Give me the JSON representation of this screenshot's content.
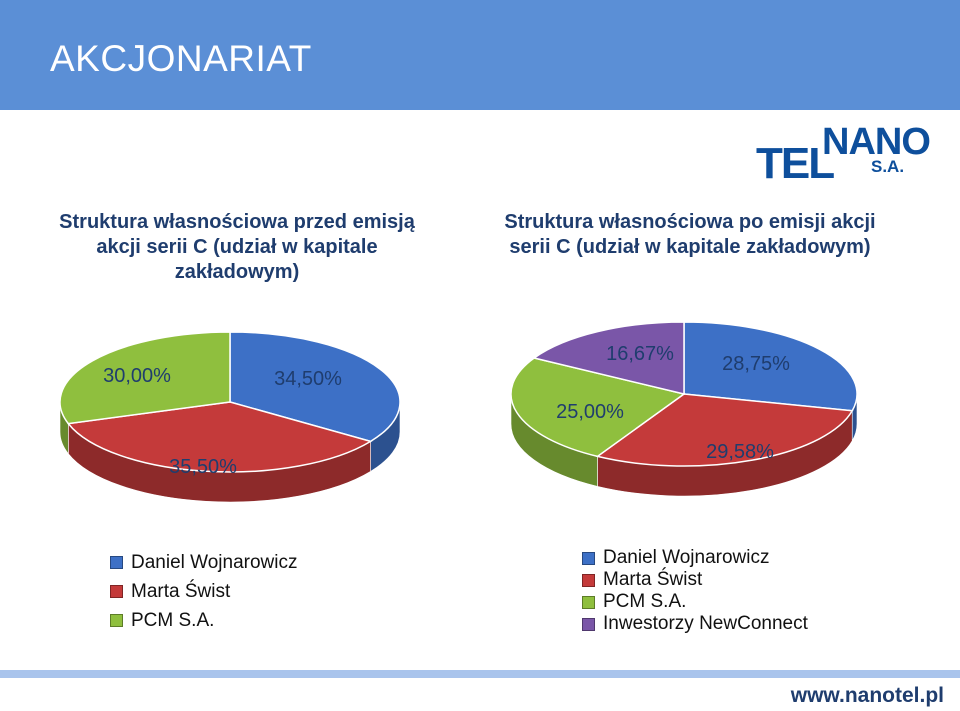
{
  "header": {
    "title": "AKCJONARIAT"
  },
  "logo": {
    "text_main": "TEL",
    "text_nano": "NANO",
    "text_sa": "S.A."
  },
  "footer": {
    "url": "www.nanotel.pl"
  },
  "colors": {
    "header_bg": "#5b8fd6",
    "title_text": "#1f3d6e",
    "series_blue": "#3d70c6",
    "series_red": "#c43a3a",
    "series_green": "#8fbf3e",
    "series_purple": "#7a56a8"
  },
  "chart_data": [
    {
      "type": "pie",
      "title": "Struktura własnościowa przed emisją akcji serii C (udział w kapitale zakładowym)",
      "categories": [
        "Daniel Wojnarowicz",
        "Marta Świst",
        "PCM S.A."
      ],
      "values": [
        34.5,
        35.5,
        30.0
      ],
      "labels": [
        "34,50%",
        "35,50%",
        "30,00%"
      ],
      "colors": [
        "#3d70c6",
        "#c43a3a",
        "#8fbf3e"
      ],
      "legend_position": "bottom"
    },
    {
      "type": "pie",
      "title": "Struktura własnościowa po emisji akcji serii C (udział w kapitale zakładowym)",
      "categories": [
        "Daniel Wojnarowicz",
        "Marta Świst",
        "PCM S.A.",
        "Inwestorzy NewConnect"
      ],
      "values": [
        28.75,
        29.58,
        25.0,
        16.67
      ],
      "labels": [
        "28,75%",
        "29,58%",
        "25,00%",
        "16,67%"
      ],
      "colors": [
        "#3d70c6",
        "#c43a3a",
        "#8fbf3e",
        "#7a56a8"
      ],
      "legend_position": "bottom"
    }
  ]
}
